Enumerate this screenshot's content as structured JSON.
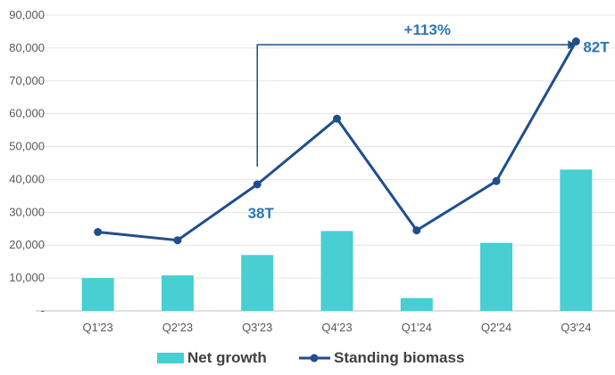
{
  "chart_data": {
    "type": "bar",
    "categories": [
      "Q1'23",
      "Q2'23",
      "Q3'23",
      "Q4'23",
      "Q1'24",
      "Q2'24",
      "Q3'24"
    ],
    "series": [
      {
        "name": "Net growth",
        "type": "bar",
        "color": "#47cfd1",
        "values": [
          10000,
          10800,
          17000,
          24300,
          3900,
          20700,
          43000
        ]
      },
      {
        "name": "Standing biomass",
        "type": "line",
        "color": "#1f4e8c",
        "values": [
          24000,
          21500,
          38500,
          58500,
          24500,
          39500,
          82000
        ]
      }
    ],
    "yticks": [
      "-",
      "10,000",
      "20,000",
      "30,000",
      "40,000",
      "50,000",
      "60,000",
      "70,000",
      "80,000",
      "90,000"
    ],
    "ylim": [
      0,
      90000
    ],
    "grid": true,
    "legend_position": "bottom",
    "annotations": [
      {
        "text": "38T",
        "category": "Q3'23",
        "color": "#2e75b6"
      },
      {
        "text": "82T",
        "category": "Q3'24",
        "color": "#2e75b6"
      },
      {
        "text": "+113%",
        "from": "Q3'23",
        "to": "Q3'24",
        "color": "#2e75b6"
      }
    ]
  }
}
